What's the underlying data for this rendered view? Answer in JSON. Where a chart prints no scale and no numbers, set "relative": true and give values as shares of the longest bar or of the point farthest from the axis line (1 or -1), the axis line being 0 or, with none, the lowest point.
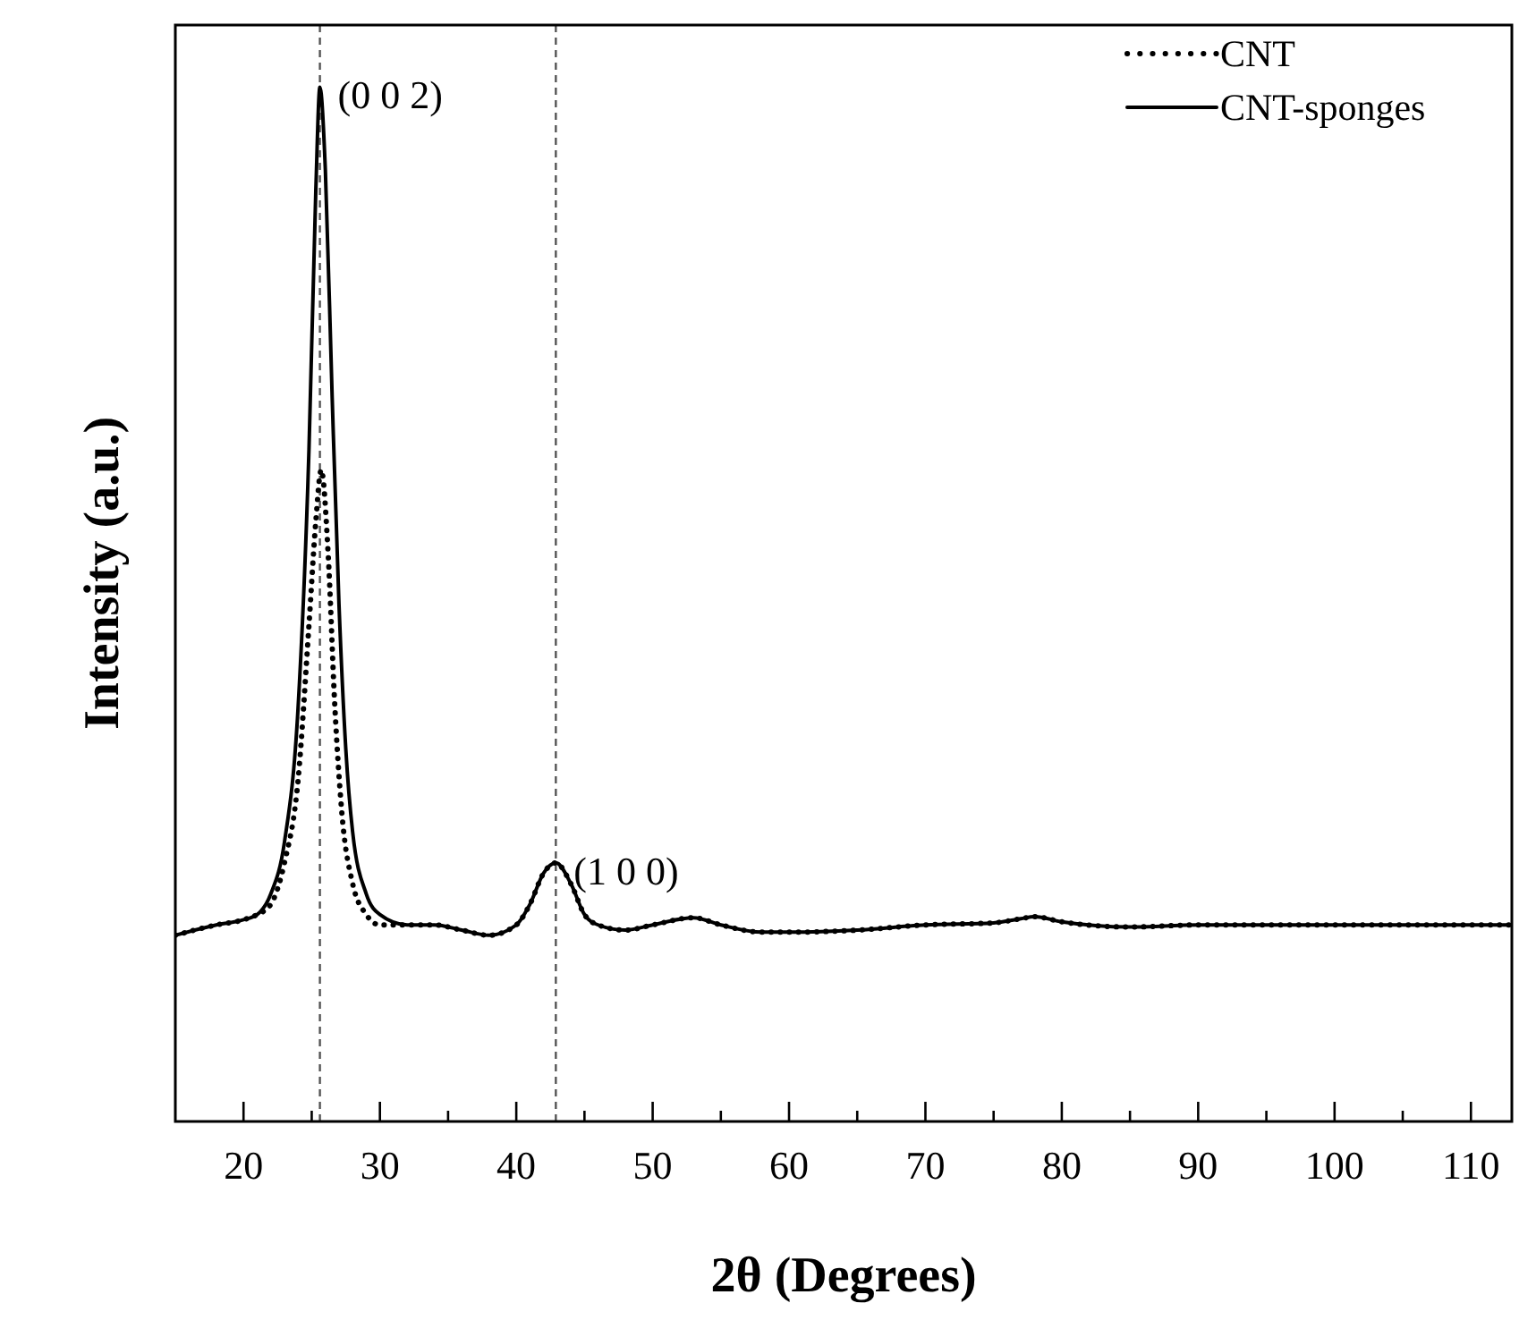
{
  "chart_data": {
    "type": "line",
    "xlabel": "2θ (Degrees)",
    "ylabel": "Intensity (a.u.)",
    "relative": true,
    "tick_labels": "x",
    "legend": "top right",
    "xlim": [
      15,
      113
    ],
    "xticks": [
      20,
      {
        "value": 25,
        "label": null
      },
      30,
      {
        "value": 35,
        "label": null
      },
      40,
      {
        "value": 45,
        "label": null
      },
      50,
      {
        "value": 55,
        "label": null
      },
      60,
      {
        "value": 65,
        "label": null
      },
      70,
      {
        "value": 75,
        "label": null
      },
      80,
      {
        "value": 85,
        "label": null
      },
      90,
      {
        "value": 95,
        "label": null
      },
      100,
      {
        "value": 105,
        "label": null
      },
      110
    ],
    "ref_lines": [
      {
        "axis": "x",
        "value": 25.6,
        "color": "#555555",
        "line_style": "dashed"
      },
      {
        "axis": "x",
        "value": 42.9,
        "color": "#555555",
        "line_style": "dashed"
      }
    ],
    "annotations": [
      {
        "text": "(0 0 2)",
        "x": 25.6,
        "y": 1.0
      },
      {
        "text": "(1 0 0)",
        "x": 42.9,
        "y": 0.25
      }
    ],
    "series": [
      {
        "name": "CNT",
        "color": "#000000",
        "line_style": "dotted",
        "x": [
          15,
          18,
          20,
          21,
          22,
          23,
          24,
          24.8,
          25.3,
          25.7,
          26.2,
          26.7,
          27.2,
          28,
          29,
          30,
          32,
          34,
          36,
          38,
          40,
          41,
          42,
          42.9,
          44,
          45,
          46,
          48,
          50,
          53,
          55,
          58,
          60,
          65,
          70,
          75,
          77,
          78,
          80,
          85,
          90,
          95,
          100,
          105,
          110,
          113
        ],
        "values": [
          0.18,
          0.19,
          0.195,
          0.2,
          0.21,
          0.25,
          0.33,
          0.48,
          0.58,
          0.63,
          0.55,
          0.4,
          0.3,
          0.23,
          0.2,
          0.19,
          0.19,
          0.19,
          0.185,
          0.18,
          0.19,
          0.21,
          0.24,
          0.25,
          0.23,
          0.2,
          0.19,
          0.185,
          0.19,
          0.197,
          0.19,
          0.183,
          0.183,
          0.185,
          0.19,
          0.192,
          0.196,
          0.198,
          0.193,
          0.188,
          0.19,
          0.19,
          0.19,
          0.19,
          0.19,
          0.19
        ]
      },
      {
        "name": "CNT-sponges",
        "color": "#000000",
        "line_style": "solid",
        "x": [
          15,
          18,
          20,
          21,
          22,
          23,
          24,
          24.8,
          25.3,
          25.6,
          26,
          26.5,
          27,
          27.5,
          28,
          29,
          30,
          32,
          34,
          36,
          38,
          40,
          41,
          42,
          42.9,
          44,
          45,
          46,
          48,
          50,
          53,
          55,
          58,
          60,
          65,
          70,
          75,
          77,
          78,
          80,
          85,
          90,
          95,
          100,
          105,
          110,
          113
        ],
        "values": [
          0.18,
          0.19,
          0.195,
          0.2,
          0.22,
          0.27,
          0.4,
          0.65,
          0.9,
          1.0,
          0.92,
          0.7,
          0.5,
          0.36,
          0.28,
          0.22,
          0.2,
          0.19,
          0.19,
          0.185,
          0.18,
          0.19,
          0.21,
          0.24,
          0.25,
          0.23,
          0.2,
          0.19,
          0.185,
          0.19,
          0.197,
          0.19,
          0.183,
          0.183,
          0.185,
          0.19,
          0.192,
          0.196,
          0.198,
          0.193,
          0.188,
          0.19,
          0.19,
          0.19,
          0.19,
          0.19,
          0.19
        ]
      }
    ]
  }
}
